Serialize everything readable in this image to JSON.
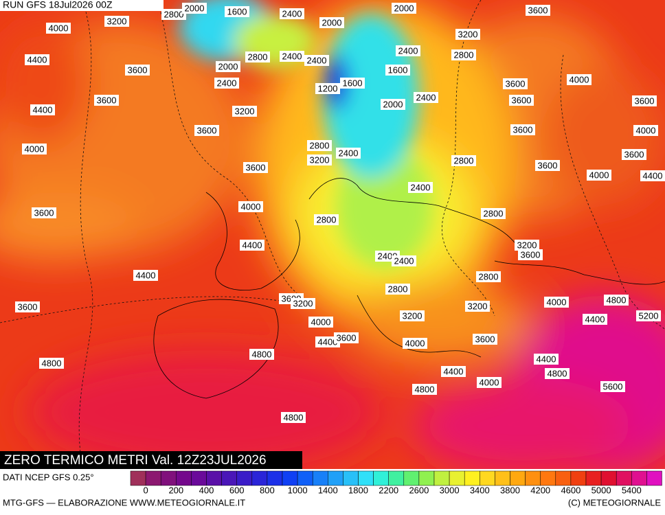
{
  "header": {
    "run": "RUN GFS 18Jul2026 00Z"
  },
  "map": {
    "title": "ZERO TERMICO METRI Val. 12Z23JUL2026",
    "contour_labels": [
      2800,
      2000,
      1600,
      2400,
      2000,
      3600,
      3200,
      4000,
      2000,
      3200,
      4400,
      2800,
      2400,
      2400,
      2400,
      2800,
      2000,
      3600,
      1600,
      2400,
      1200,
      1600,
      3600,
      4000,
      3600,
      2400,
      2000,
      3600,
      3600,
      4400,
      3200,
      3600,
      3600,
      4000,
      2800,
      2400,
      4000,
      3200,
      2800,
      3600,
      3600,
      3600,
      4000,
      4400,
      2400,
      4000,
      3600,
      2800,
      2800,
      4400,
      3200,
      3600,
      2400,
      2400,
      4400,
      2800,
      2800,
      3600,
      3200,
      4000,
      4800,
      3600,
      3200,
      4400,
      5200,
      3200,
      4000,
      4400,
      3600,
      4000,
      3600,
      4800,
      4800,
      4400,
      4400,
      4000,
      4800,
      4800,
      5600,
      4800
    ]
  },
  "legend": {
    "source": "DATI NCEP GFS 0.25°",
    "ticks": [
      0,
      200,
      400,
      600,
      800,
      1000,
      1400,
      1800,
      2200,
      2600,
      3000,
      3400,
      3800,
      4200,
      4600,
      5000,
      5400
    ],
    "colors": [
      "#a0305a",
      "#8c1870",
      "#80107c",
      "#74088c",
      "#6a0a9a",
      "#5a10a8",
      "#4a16b8",
      "#3a1cc8",
      "#2a24d8",
      "#1c30e8",
      "#1040f4",
      "#1060f8",
      "#1880f8",
      "#20a0f8",
      "#28c0f8",
      "#30e0f8",
      "#30f0d8",
      "#40f0a0",
      "#60f070",
      "#90f050",
      "#c0f040",
      "#e8f030",
      "#fff020",
      "#ffd820",
      "#ffc018",
      "#ffa810",
      "#ff9010",
      "#ff7810",
      "#f86010",
      "#f04010",
      "#e82020",
      "#e01030",
      "#e01060",
      "#e01090",
      "#e010c0"
    ]
  },
  "footer": {
    "left": "MTG-GFS — ELABORAZIONE WWW.METEOGIORNALE.IT",
    "right": "(C) METEOGIORNALE"
  }
}
